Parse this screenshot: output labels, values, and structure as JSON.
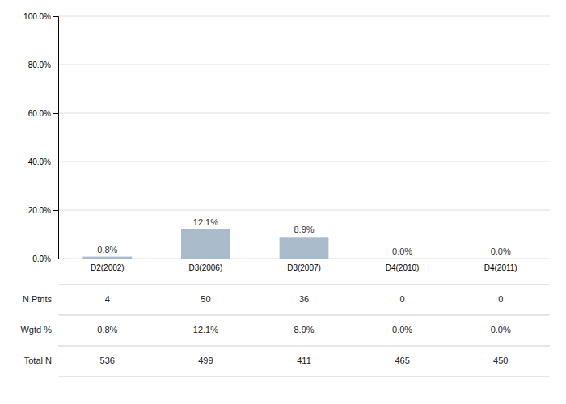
{
  "chart_data": {
    "type": "bar",
    "categories": [
      "D2(2002)",
      "D3(2006)",
      "D3(2007)",
      "D4(2010)",
      "D4(2011)"
    ],
    "values": [
      0.8,
      12.1,
      8.9,
      0.0,
      0.0
    ],
    "value_labels": [
      "0.8%",
      "12.1%",
      "8.9%",
      "0.0%",
      "0.0%"
    ],
    "data_labels": true,
    "color": "#aabbcc",
    "ylim": [
      0,
      100
    ],
    "yticks": [
      {
        "value": 0,
        "label": "0.0%"
      },
      {
        "value": 20.0,
        "label": "20.0%"
      },
      {
        "value": 40.0,
        "label": "40.0%"
      },
      {
        "value": 60.0,
        "label": "60.0%"
      },
      {
        "value": 80.0,
        "label": "80.0%"
      },
      {
        "value": 100.0,
        "label": "100.0%"
      }
    ],
    "grid": true,
    "table": [
      {
        "label": "N Ptnts",
        "values": [
          4,
          50,
          36,
          0,
          0
        ]
      },
      {
        "label": "Wgtd %",
        "values": [
          0.8,
          12.1,
          8.9,
          0.0,
          0.0
        ],
        "value_labels": [
          "0.8%",
          "12.1%",
          "8.9%",
          "0.0%",
          "0.0%"
        ]
      },
      {
        "label": "Total N",
        "values": [
          536,
          499,
          411,
          465,
          450
        ]
      }
    ]
  }
}
